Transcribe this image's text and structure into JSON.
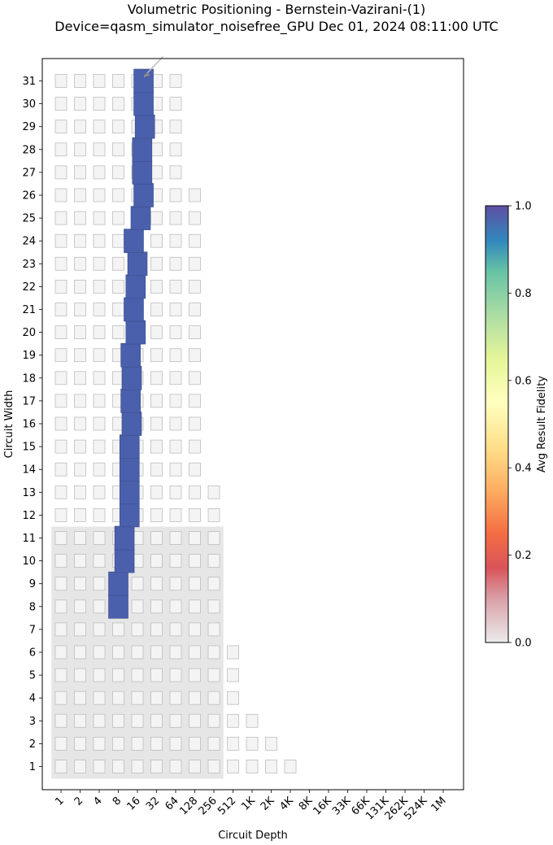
{
  "title_line1": "Volumetric Positioning - Bernstein-Vazirani-(1)",
  "title_line2": "Device=qasm_simulator_noisefree_GPU  Dec 01, 2024 08:11:00 UTC",
  "chart_data": {
    "type": "heatmap",
    "title": "Volumetric Positioning - Bernstein-Vazirani-(1)",
    "subtitle": "Device=qasm_simulator_noisefree_GPU  Dec 01, 2024 08:11:00 UTC",
    "xlabel": "Circuit Depth",
    "ylabel": "Circuit Width",
    "x_scale": "log2",
    "x_ticks": [
      "1",
      "2",
      "4",
      "8",
      "16",
      "32",
      "64",
      "128",
      "256",
      "512",
      "1K",
      "2K",
      "4K",
      "8K",
      "16K",
      "33K",
      "66K",
      "131K",
      "262K",
      "524K",
      "1M"
    ],
    "y_ticks": [
      1,
      2,
      3,
      4,
      5,
      6,
      7,
      8,
      9,
      10,
      11,
      12,
      13,
      14,
      15,
      16,
      17,
      18,
      19,
      20,
      21,
      22,
      23,
      24,
      25,
      26,
      27,
      28,
      29,
      30,
      31
    ],
    "colorbar": {
      "label": "Avg Result Fidelity",
      "range": [
        0.0,
        1.0
      ],
      "ticks": [
        "0.0",
        "0.2",
        "0.4",
        "0.6",
        "0.8",
        "1.0"
      ]
    },
    "quantum_volume_region": {
      "max_width": 11,
      "max_depth": 256
    },
    "background_grid": [
      {
        "width": 1,
        "max_depth": 4096
      },
      {
        "width": 2,
        "max_depth": 2048
      },
      {
        "width": 3,
        "max_depth": 1024
      },
      {
        "width": 4,
        "max_depth": 512
      },
      {
        "width": 5,
        "max_depth": 512
      },
      {
        "width": 6,
        "max_depth": 512
      },
      {
        "width": 7,
        "max_depth": 256
      },
      {
        "width": 8,
        "max_depth": 256
      },
      {
        "width": 9,
        "max_depth": 256
      },
      {
        "width": 10,
        "max_depth": 256
      },
      {
        "width": 11,
        "max_depth": 256
      },
      {
        "width": 12,
        "max_depth": 256
      },
      {
        "width": 13,
        "max_depth": 256
      },
      {
        "width": 14,
        "max_depth": 128
      },
      {
        "width": 15,
        "max_depth": 128
      },
      {
        "width": 16,
        "max_depth": 128
      },
      {
        "width": 17,
        "max_depth": 128
      },
      {
        "width": 18,
        "max_depth": 128
      },
      {
        "width": 19,
        "max_depth": 128
      },
      {
        "width": 20,
        "max_depth": 128
      },
      {
        "width": 21,
        "max_depth": 128
      },
      {
        "width": 22,
        "max_depth": 128
      },
      {
        "width": 23,
        "max_depth": 128
      },
      {
        "width": 24,
        "max_depth": 128
      },
      {
        "width": 25,
        "max_depth": 128
      },
      {
        "width": 26,
        "max_depth": 128
      },
      {
        "width": 27,
        "max_depth": 64
      },
      {
        "width": 28,
        "max_depth": 64
      },
      {
        "width": 29,
        "max_depth": 64
      },
      {
        "width": 30,
        "max_depth": 64
      },
      {
        "width": 31,
        "max_depth": 64
      }
    ],
    "points": [
      {
        "width": 8,
        "depth": 8,
        "fidelity": 1.0
      },
      {
        "width": 9,
        "depth": 8,
        "fidelity": 1.0
      },
      {
        "width": 10,
        "depth": 10,
        "fidelity": 1.0
      },
      {
        "width": 11,
        "depth": 10,
        "fidelity": 1.0
      },
      {
        "width": 12,
        "depth": 12,
        "fidelity": 1.0
      },
      {
        "width": 13,
        "depth": 12,
        "fidelity": 1.0
      },
      {
        "width": 14,
        "depth": 12,
        "fidelity": 1.0
      },
      {
        "width": 15,
        "depth": 12,
        "fidelity": 1.0
      },
      {
        "width": 16,
        "depth": 13,
        "fidelity": 1.0
      },
      {
        "width": 17,
        "depth": 12.5,
        "fidelity": 1.0
      },
      {
        "width": 18,
        "depth": 13,
        "fidelity": 1.0
      },
      {
        "width": 19,
        "depth": 12.5,
        "fidelity": 1.0
      },
      {
        "width": 20,
        "depth": 15,
        "fidelity": 1.0
      },
      {
        "width": 21,
        "depth": 14,
        "fidelity": 1.0
      },
      {
        "width": 22,
        "depth": 15,
        "fidelity": 1.0
      },
      {
        "width": 23,
        "depth": 16,
        "fidelity": 1.0
      },
      {
        "width": 24,
        "depth": 14,
        "fidelity": 1.0
      },
      {
        "width": 25,
        "depth": 18,
        "fidelity": 1.0
      },
      {
        "width": 26,
        "depth": 20,
        "fidelity": 1.0
      },
      {
        "width": 27,
        "depth": 19,
        "fidelity": 1.0
      },
      {
        "width": 28,
        "depth": 19,
        "fidelity": 1.0
      },
      {
        "width": 29,
        "depth": 21,
        "fidelity": 1.0
      },
      {
        "width": 30,
        "depth": 20,
        "fidelity": 1.0
      },
      {
        "width": 31,
        "depth": 20,
        "fidelity": 1.0
      }
    ],
    "arrow": {
      "target_width": 31,
      "target_depth": 20
    }
  }
}
